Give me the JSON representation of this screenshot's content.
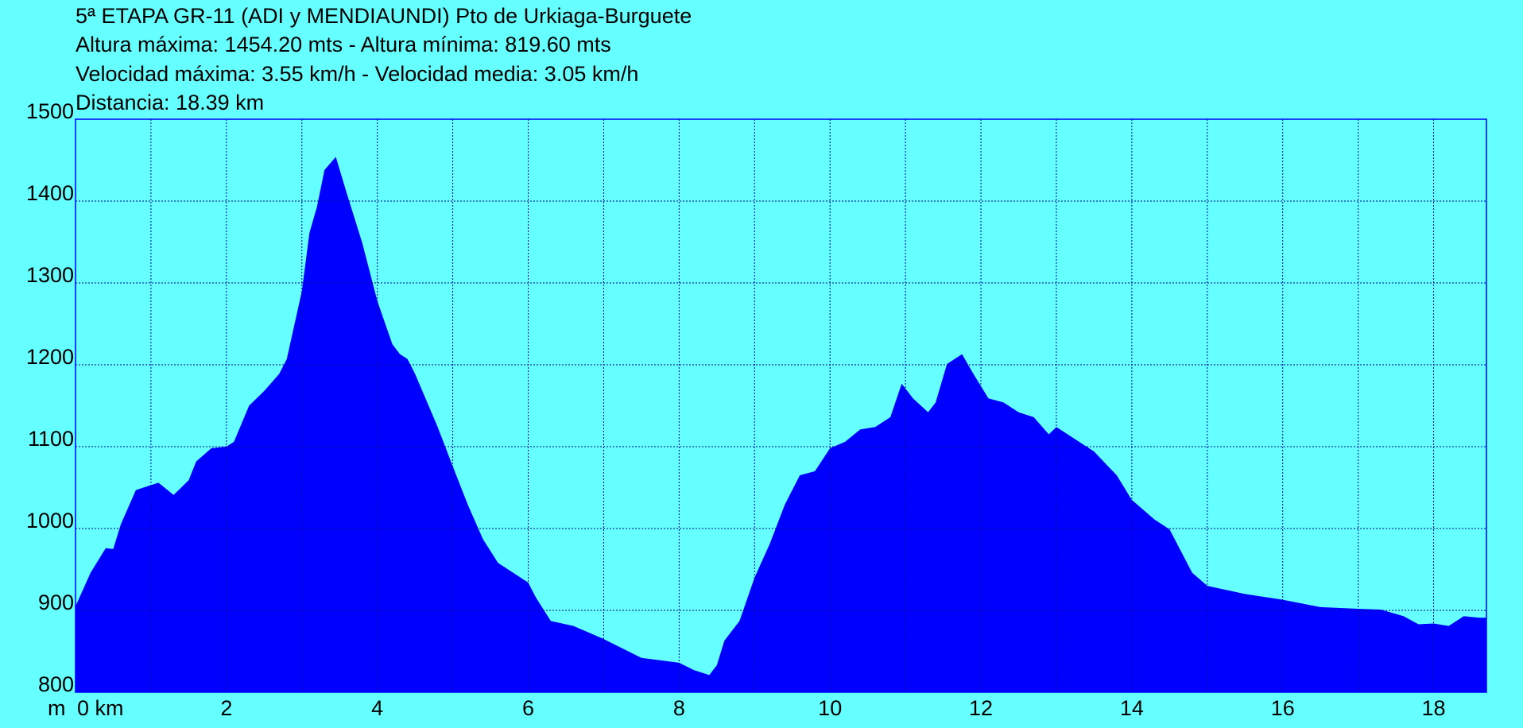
{
  "chart_data": {
    "type": "area",
    "title": "5ª ETAPA GR-11 (ADI y MENDIAUNDI) Pto de Urkiaga-Burguete",
    "subtitles": [
      "Altura máxima: 1454.20 mts - Altura mínima: 819.60 mts",
      "Velocidad máxima: 3.55 km/h - Velocidad media: 3.05 km/h",
      "Distancia: 18.39 km"
    ],
    "y_unit": "m",
    "x": [
      0,
      0.2,
      0.4,
      0.5,
      0.6,
      0.8,
      1.0,
      1.1,
      1.3,
      1.5,
      1.6,
      1.8,
      2.0,
      2.1,
      2.3,
      2.5,
      2.7,
      2.8,
      3.0,
      3.1,
      3.2,
      3.3,
      3.45,
      3.6,
      3.8,
      4.0,
      4.2,
      4.3,
      4.4,
      4.5,
      4.8,
      5.0,
      5.2,
      5.4,
      5.6,
      5.8,
      6.0,
      6.1,
      6.3,
      6.6,
      7.0,
      7.5,
      8.0,
      8.2,
      8.4,
      8.5,
      8.6,
      8.8,
      9.0,
      9.2,
      9.4,
      9.6,
      9.8,
      10.0,
      10.2,
      10.4,
      10.6,
      10.8,
      10.95,
      11.1,
      11.3,
      11.4,
      11.55,
      11.75,
      11.9,
      12.1,
      12.3,
      12.5,
      12.7,
      12.9,
      13.0,
      13.2,
      13.5,
      13.8,
      14.0,
      14.3,
      14.5,
      14.8,
      15.0,
      15.5,
      16.0,
      16.5,
      17.0,
      17.3,
      17.6,
      17.8,
      18.0,
      18.2,
      18.4,
      18.6
    ],
    "values": [
      905,
      946,
      976,
      975,
      1005,
      1047,
      1053,
      1056,
      1041,
      1059,
      1082,
      1098,
      1100,
      1106,
      1150,
      1168,
      1189,
      1207,
      1290,
      1361,
      1393,
      1438,
      1454,
      1408,
      1349,
      1278,
      1225,
      1213,
      1207,
      1189,
      1124,
      1076,
      1029,
      987,
      958,
      946,
      934,
      916,
      887,
      881,
      865,
      842,
      836,
      827,
      821,
      833,
      863,
      887,
      940,
      981,
      1029,
      1065,
      1070,
      1098,
      1106,
      1121,
      1124,
      1136,
      1177,
      1159,
      1142,
      1154,
      1201,
      1213,
      1189,
      1159,
      1154,
      1142,
      1136,
      1115,
      1124,
      1112,
      1094,
      1065,
      1035,
      1011,
      999,
      946,
      930,
      920,
      913,
      904,
      902,
      901,
      893,
      883,
      884,
      881,
      893,
      891
    ],
    "color": "#0000ff",
    "background": "#66ffff",
    "grid_color": "#0000a0",
    "xlim": [
      0,
      18.7
    ],
    "ylim": [
      800,
      1500
    ],
    "xticks": [
      {
        "value": 0,
        "label": "0 km"
      },
      2,
      4,
      6,
      8,
      10,
      12,
      14,
      16,
      18
    ],
    "x_minor_ticks": [
      1,
      3,
      5,
      7,
      9,
      11,
      13,
      15,
      17
    ],
    "yticks": [
      800,
      900,
      1000,
      1100,
      1200,
      1300,
      1400,
      1500
    ],
    "grid": true
  }
}
